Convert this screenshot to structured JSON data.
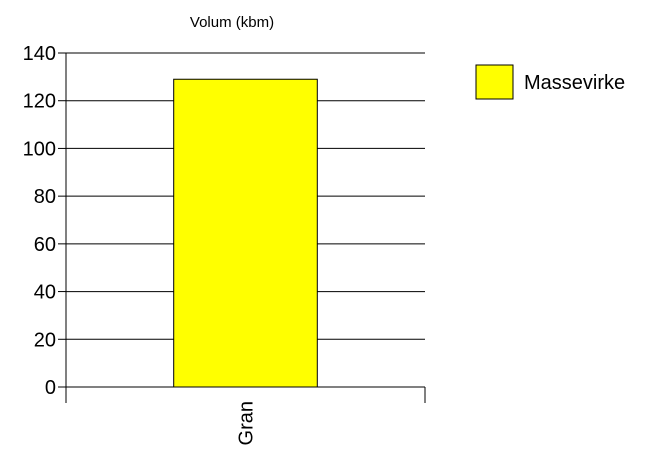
{
  "chart_data": {
    "type": "bar",
    "title": "Volum (kbm)",
    "categories": [
      "Gran"
    ],
    "series": [
      {
        "name": "Massevirke",
        "values": [
          129
        ],
        "color": "#ffff00"
      }
    ],
    "ylim": [
      0,
      140
    ],
    "yticks": [
      "0",
      "20",
      "40",
      "60",
      "80",
      "100",
      "120",
      "140"
    ],
    "grid": true,
    "legend_position": "right",
    "xlabel": "",
    "ylabel": ""
  }
}
